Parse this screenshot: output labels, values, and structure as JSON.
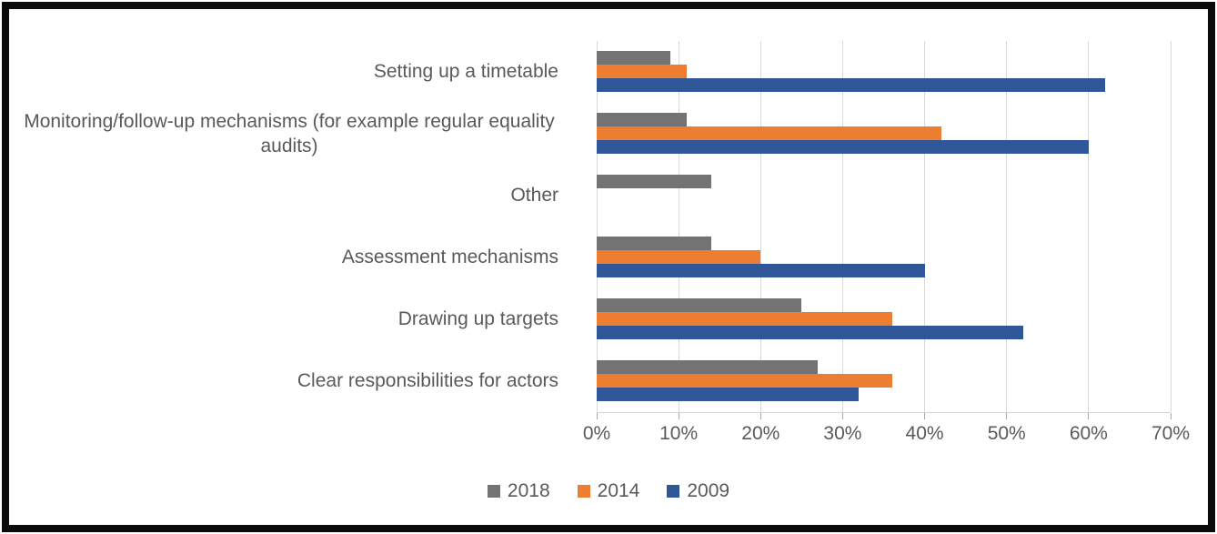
{
  "chart_data": {
    "type": "bar",
    "orientation": "horizontal",
    "title": "",
    "categories": [
      "Setting up a timetable",
      "Monitoring/follow-up mechanisms (for example regular equality audits)",
      "Other",
      "Assessment mechanisms",
      "Drawing up targets",
      "Clear responsibilities for actors"
    ],
    "series": [
      {
        "name": "2018",
        "color": "#737373",
        "values": [
          9,
          11,
          14,
          14,
          25,
          27
        ]
      },
      {
        "name": "2014",
        "color": "#ED7D31",
        "values": [
          11,
          42,
          0,
          20,
          36,
          36
        ]
      },
      {
        "name": "2009",
        "color": "#2F5696",
        "values": [
          62,
          60,
          0,
          40,
          52,
          32
        ]
      }
    ],
    "x_axis": {
      "tick_labels": [
        "0%",
        "10%",
        "20%",
        "30%",
        "40%",
        "50%",
        "60%",
        "70%"
      ],
      "tick_values": [
        0,
        10,
        20,
        30,
        40,
        50,
        60,
        70
      ],
      "min": 0,
      "max": 70,
      "unit": "%"
    },
    "legend": [
      "2018",
      "2014",
      "2009"
    ],
    "legend_position": "bottom",
    "grid": true,
    "colors": {
      "gridline": "#d9d9d9",
      "tick": "#a6a6a6",
      "axis_text": "#595959",
      "frame_border": "#0b0b0b"
    }
  }
}
